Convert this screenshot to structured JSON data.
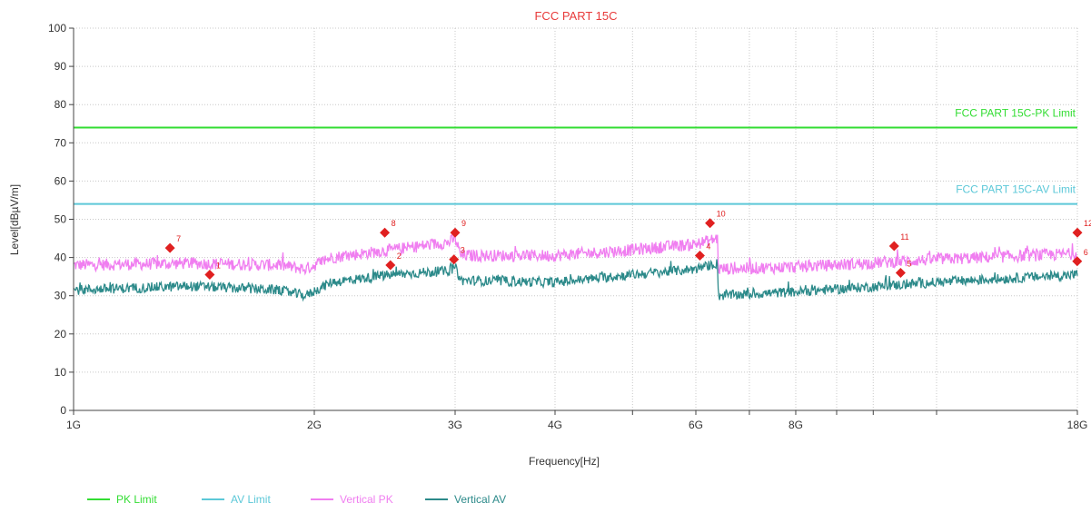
{
  "chart_data": {
    "type": "line",
    "title": "FCC PART 15C",
    "xlabel": "Frequency[Hz]",
    "ylabel": "Level[dBµV/m]",
    "x_scale": "log",
    "xlim": [
      1000000000,
      18000000000
    ],
    "ylim": [
      0,
      100
    ],
    "x_ticks": [
      {
        "value": 1000000000,
        "label": "1G"
      },
      {
        "value": 2000000000,
        "label": "2G"
      },
      {
        "value": 3000000000,
        "label": "3G"
      },
      {
        "value": 4000000000,
        "label": "4G"
      },
      {
        "value": 6000000000,
        "label": "6G"
      },
      {
        "value": 8000000000,
        "label": "8G"
      },
      {
        "value": 18000000000,
        "label": "18G"
      }
    ],
    "x_minor_grid": [
      5000000000,
      7000000000,
      9000000000,
      10000000000,
      12000000000
    ],
    "y_ticks": [
      0,
      10,
      20,
      30,
      40,
      50,
      60,
      70,
      80,
      90,
      100
    ],
    "grid": true,
    "legend_position": "bottom-left",
    "limits": [
      {
        "name": "PK Limit",
        "value": 74,
        "label": "FCC PART 15C-PK Limit",
        "color": "#33dd33"
      },
      {
        "name": "AV Limit",
        "value": 54,
        "label": "FCC PART 15C-AV Limit",
        "color": "#5cc8d8"
      }
    ],
    "series": [
      {
        "name": "Vertical PK",
        "color": "#f07ef0",
        "noise": 1.6,
        "x": [
          1000000000,
          1400000000,
          1800000000,
          1950000000,
          2100000000,
          2500000000,
          2950000000,
          3000000000,
          3050000000,
          4000000000,
          5000000000,
          6000000000,
          6390000000,
          6400000000,
          8000000000,
          12000000000,
          18000000000
        ],
        "values": [
          38,
          38.5,
          38,
          37,
          40,
          42,
          44,
          45,
          40.5,
          40.5,
          42,
          43.5,
          45,
          37,
          37.5,
          39.5,
          41
        ]
      },
      {
        "name": "Vertical AV",
        "color": "#2c8a8a",
        "noise": 1.3,
        "x": [
          1000000000,
          1400000000,
          1800000000,
          1950000000,
          2100000000,
          2500000000,
          2950000000,
          3000000000,
          3050000000,
          4000000000,
          5000000000,
          6000000000,
          6390000000,
          6400000000,
          8000000000,
          12000000000,
          18000000000
        ],
        "values": [
          31.5,
          32.5,
          31.5,
          30,
          33.5,
          35.5,
          36.5,
          37.5,
          34,
          33.5,
          35.5,
          37,
          38.5,
          30,
          31,
          33.5,
          35.5
        ]
      }
    ],
    "markers": [
      {
        "label": "1",
        "x": 1480000000,
        "y": 35.5
      },
      {
        "label": "2",
        "x": 2490000000,
        "y": 38
      },
      {
        "label": "3",
        "x": 2990000000,
        "y": 39.5
      },
      {
        "label": "4",
        "x": 6070000000,
        "y": 40.5
      },
      {
        "label": "5",
        "x": 10820000000,
        "y": 36
      },
      {
        "label": "6",
        "x": 17990000000,
        "y": 39
      },
      {
        "label": "7",
        "x": 1320000000,
        "y": 42.5
      },
      {
        "label": "8",
        "x": 2450000000,
        "y": 46.5
      },
      {
        "label": "9",
        "x": 3000000000,
        "y": 46.5
      },
      {
        "label": "10",
        "x": 6250000000,
        "y": 49
      },
      {
        "label": "11",
        "x": 10620000000,
        "y": 43
      },
      {
        "label": "12",
        "x": 18000000000,
        "y": 46.5
      }
    ],
    "legend": [
      {
        "name": "PK Limit",
        "color": "#33dd33"
      },
      {
        "name": "AV Limit",
        "color": "#5cc8d8"
      },
      {
        "name": "Vertical PK",
        "color": "#f07ef0"
      },
      {
        "name": "Vertical AV",
        "color": "#2c8a8a"
      }
    ]
  }
}
